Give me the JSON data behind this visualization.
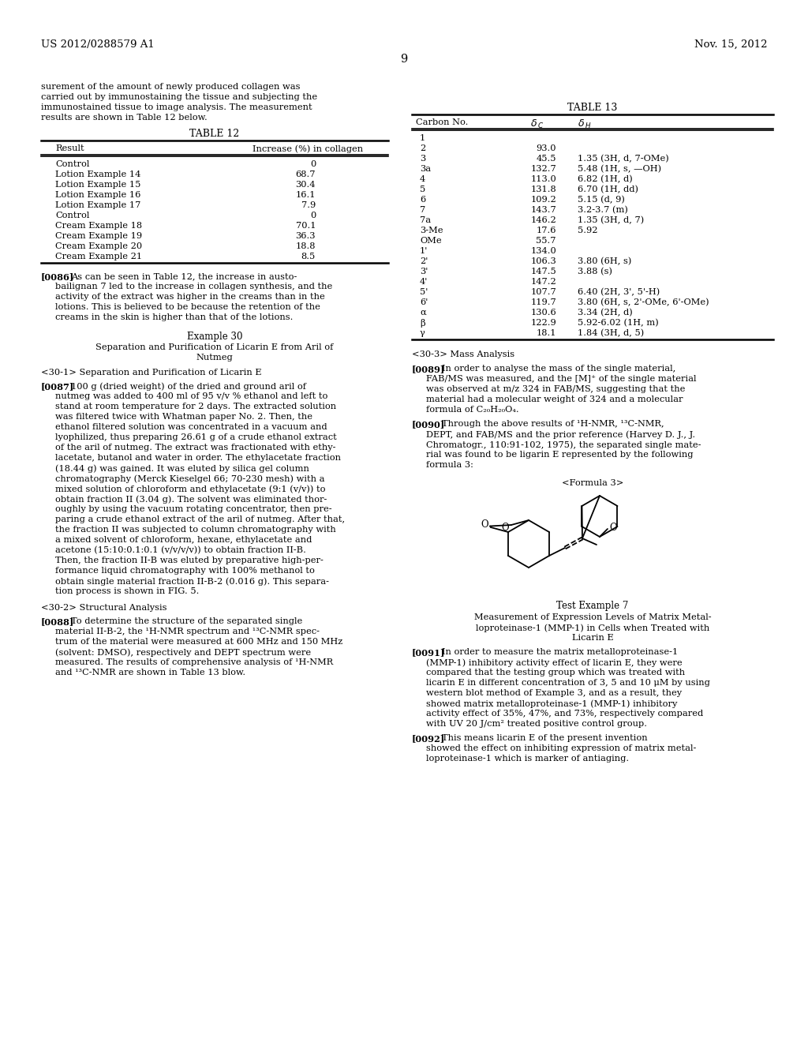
{
  "page_number": "9",
  "patent_number": "US 2012/0288579 A1",
  "patent_date": "Nov. 15, 2012",
  "bg_color": "#ffffff",
  "text_color": "#000000",
  "left_column": {
    "intro_text": [
      "surement of the amount of newly produced collagen was",
      "carried out by immunostaining the tissue and subjecting the",
      "immunostained tissue to image analysis. The measurement",
      "results are shown in Table 12 below."
    ],
    "table12_title": "TABLE 12",
    "table12_col1": "Result",
    "table12_col2": "Increase (%) in collagen",
    "table12_rows": [
      [
        "Control",
        "0"
      ],
      [
        "Lotion Example 14",
        "68.7"
      ],
      [
        "Lotion Example 15",
        "30.4"
      ],
      [
        "Lotion Example 16",
        "16.1"
      ],
      [
        "Lotion Example 17",
        "7.9"
      ],
      [
        "Control",
        "0"
      ],
      [
        "Cream Example 18",
        "70.1"
      ],
      [
        "Cream Example 19",
        "36.3"
      ],
      [
        "Cream Example 20",
        "18.8"
      ],
      [
        "Cream Example 21",
        "8.5"
      ]
    ],
    "para86_label": "[0086]",
    "para86_text": [
      "As can be seen in Table 12, the increase in austo-",
      "bailignan 7 led to the increase in collagen synthesis, and the",
      "activity of the extract was higher in the creams than in the",
      "lotions. This is believed to be because the retention of the",
      "creams in the skin is higher than that of the lotions."
    ],
    "example30_header": "Example 30",
    "example30_subheader": "Separation and Purification of Licarin E from Aril of",
    "example30_subheader2": "Nutmeg",
    "section301_header": "<30-1> Separation and Purification of Licarin E",
    "para87_label": "[0087]",
    "para87_text": [
      "100 g (dried weight) of the dried and ground aril of",
      "nutmeg was added to 400 ml of 95 v/v % ethanol and left to",
      "stand at room temperature for 2 days. The extracted solution",
      "was filtered twice with Whatman paper No. 2. Then, the",
      "ethanol filtered solution was concentrated in a vacuum and",
      "lyophilized, thus preparing 26.61 g of a crude ethanol extract",
      "of the aril of nutmeg. The extract was fractionated with ethy-",
      "lacetate, butanol and water in order. The ethylacetate fraction",
      "(18.44 g) was gained. It was eluted by silica gel column",
      "chromatography (Merck Kieselgel 66; 70-230 mesh) with a",
      "mixed solution of chloroform and ethylacetate (9:1 (v/v)) to",
      "obtain fraction II (3.04 g). The solvent was eliminated thor-",
      "oughly by using the vacuum rotating concentrator, then pre-",
      "paring a crude ethanol extract of the aril of nutmeg. After that,",
      "the fraction II was subjected to column chromatography with",
      "a mixed solvent of chloroform, hexane, ethylacetate and",
      "acetone (15:10:0.1:0.1 (v/v/v/v)) to obtain fraction II-B.",
      "Then, the fraction II-B was eluted by preparative high-per-",
      "formance liquid chromatography with 100% methanol to",
      "obtain single material fraction II-B-2 (0.016 g). This separa-",
      "tion process is shown in FIG. 5."
    ],
    "section302_header": "<30-2> Structural Analysis",
    "para88_label": "[0088]",
    "para88_text": [
      "To determine the structure of the separated single",
      "material II-B-2, the ¹H-NMR spectrum and ¹³C-NMR spec-",
      "trum of the material were measured at 600 MHz and 150 MHz",
      "(solvent: DMSO), respectively and DEPT spectrum were",
      "measured. The results of comprehensive analysis of ¹H-NMR",
      "and ¹³C-NMR are shown in Table 13 blow."
    ]
  },
  "right_column": {
    "table13_title": "TABLE 13",
    "table13_col1": "Carbon No.",
    "table13_col2": "δC",
    "table13_col3": "δH",
    "table13_rows": [
      [
        "1",
        "",
        ""
      ],
      [
        "2",
        "93.0",
        ""
      ],
      [
        "3",
        "45.5",
        "1.35 (3H, d, 7-OMe)"
      ],
      [
        "3a",
        "132.7",
        "5.48 (1H, s, —OH)"
      ],
      [
        "4",
        "113.0",
        "6.82 (1H, d)"
      ],
      [
        "5",
        "131.8",
        "6.70 (1H, dd)"
      ],
      [
        "6",
        "109.2",
        "5.15 (d, 9)"
      ],
      [
        "7",
        "143.7",
        "3.2-3.7 (m)"
      ],
      [
        "7a",
        "146.2",
        "1.35 (3H, d, 7)"
      ],
      [
        "3-Me",
        "17.6",
        "5.92"
      ],
      [
        "OMe",
        "55.7",
        ""
      ],
      [
        "1'",
        "134.0",
        ""
      ],
      [
        "2'",
        "106.3",
        "3.80 (6H, s)"
      ],
      [
        "3'",
        "147.5",
        "3.88 (s)"
      ],
      [
        "4'",
        "147.2",
        ""
      ],
      [
        "5'",
        "107.7",
        "6.40 (2H, 3', 5'-H)"
      ],
      [
        "6'",
        "119.7",
        "3.80 (6H, s, 2'-OMe, 6'-OMe)"
      ],
      [
        "α",
        "130.6",
        "3.34 (2H, d)"
      ],
      [
        "β",
        "122.9",
        "5.92-6.02 (1H, m)"
      ],
      [
        "γ",
        "18.1",
        "1.84 (3H, d, 5)"
      ]
    ],
    "mass_analysis_header": "<30-3> Mass Analysis",
    "para89_label": "[0089]",
    "para89_text": [
      "In order to analyse the mass of the single material,",
      "FAB/MS was measured, and the [M]⁺ of the single material",
      "was observed at m/z 324 in FAB/MS, suggesting that the",
      "material had a molecular weight of 324 and a molecular",
      "formula of C₂₀H₂₀O₄."
    ],
    "para90_label": "[0090]",
    "para90_text": [
      "Through the above results of ¹H-NMR, ¹³C-NMR,",
      "DEPT, and FAB/MS and the prior reference (Harvey D. J., J.",
      "Chromatogr., 110:91-102, 1975), the separated single mate-",
      "rial was found to be ligarin E represented by the following",
      "formula 3:"
    ],
    "formula3_label": "<Formula 3>",
    "test_example7_header": "Test Example 7",
    "test_example7_subheader": "Measurement of Expression Levels of Matrix Metal-",
    "test_example7_subheader2": "loproteinase-1 (MMP-1) in Cells when Treated with",
    "test_example7_subheader3": "Licarin E",
    "para91_label": "[0091]",
    "para91_text": [
      "In order to measure the matrix metalloproteinase-1",
      "(MMP-1) inhibitory activity effect of licarin E, they were",
      "compared that the testing group which was treated with",
      "licarin E in different concentration of 3, 5 and 10 μM by using",
      "western blot method of Example 3, and as a result, they",
      "showed matrix metalloproteinase-1 (MMP-1) inhibitory",
      "activity effect of 35%, 47%, and 73%, respectively compared",
      "with UV 20 J/cm² treated positive control group."
    ],
    "para92_label": "[0092]",
    "para92_text": [
      "This means licarin E of the present invention",
      "showed the effect on inhibiting expression of matrix metal-",
      "loproteinase-1 which is marker of antiaging."
    ]
  }
}
